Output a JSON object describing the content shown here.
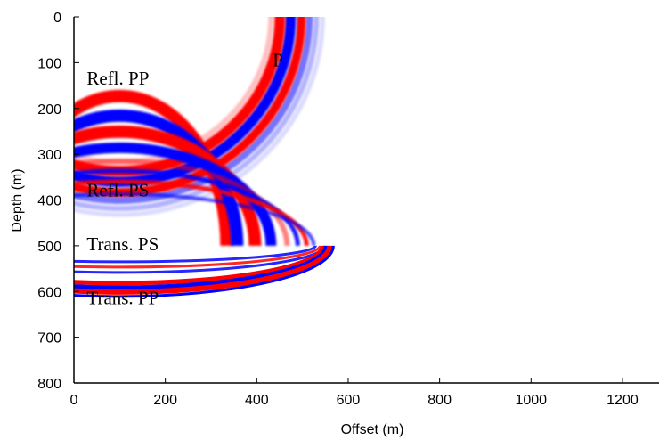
{
  "chart_data": {
    "type": "heatmap",
    "title": "",
    "xlabel": "Offset (m)",
    "ylabel": "Depth (m)",
    "xlim": [
      0,
      1280
    ],
    "ylim": [
      800,
      0
    ],
    "xticks": [
      0,
      200,
      400,
      600,
      800,
      1000,
      1200
    ],
    "yticks": [
      0,
      100,
      200,
      300,
      400,
      500,
      600,
      700,
      800
    ],
    "grid": false,
    "colormap": {
      "positive": "#ff0000",
      "negative": "#0000ff",
      "zero": "#ffffff"
    },
    "source": {
      "x": 100,
      "y": 0
    },
    "interface_depth": 500,
    "annotations": [
      {
        "text": "P",
        "x": 435,
        "y": 108
      },
      {
        "text": "Refl. PP",
        "x": 28,
        "y": 148
      },
      {
        "text": "Refl. PS",
        "x": 28,
        "y": 392
      },
      {
        "text": "Trans. PS",
        "x": 28,
        "y": 510
      },
      {
        "text": "Trans. PP",
        "x": 28,
        "y": 628
      }
    ]
  }
}
